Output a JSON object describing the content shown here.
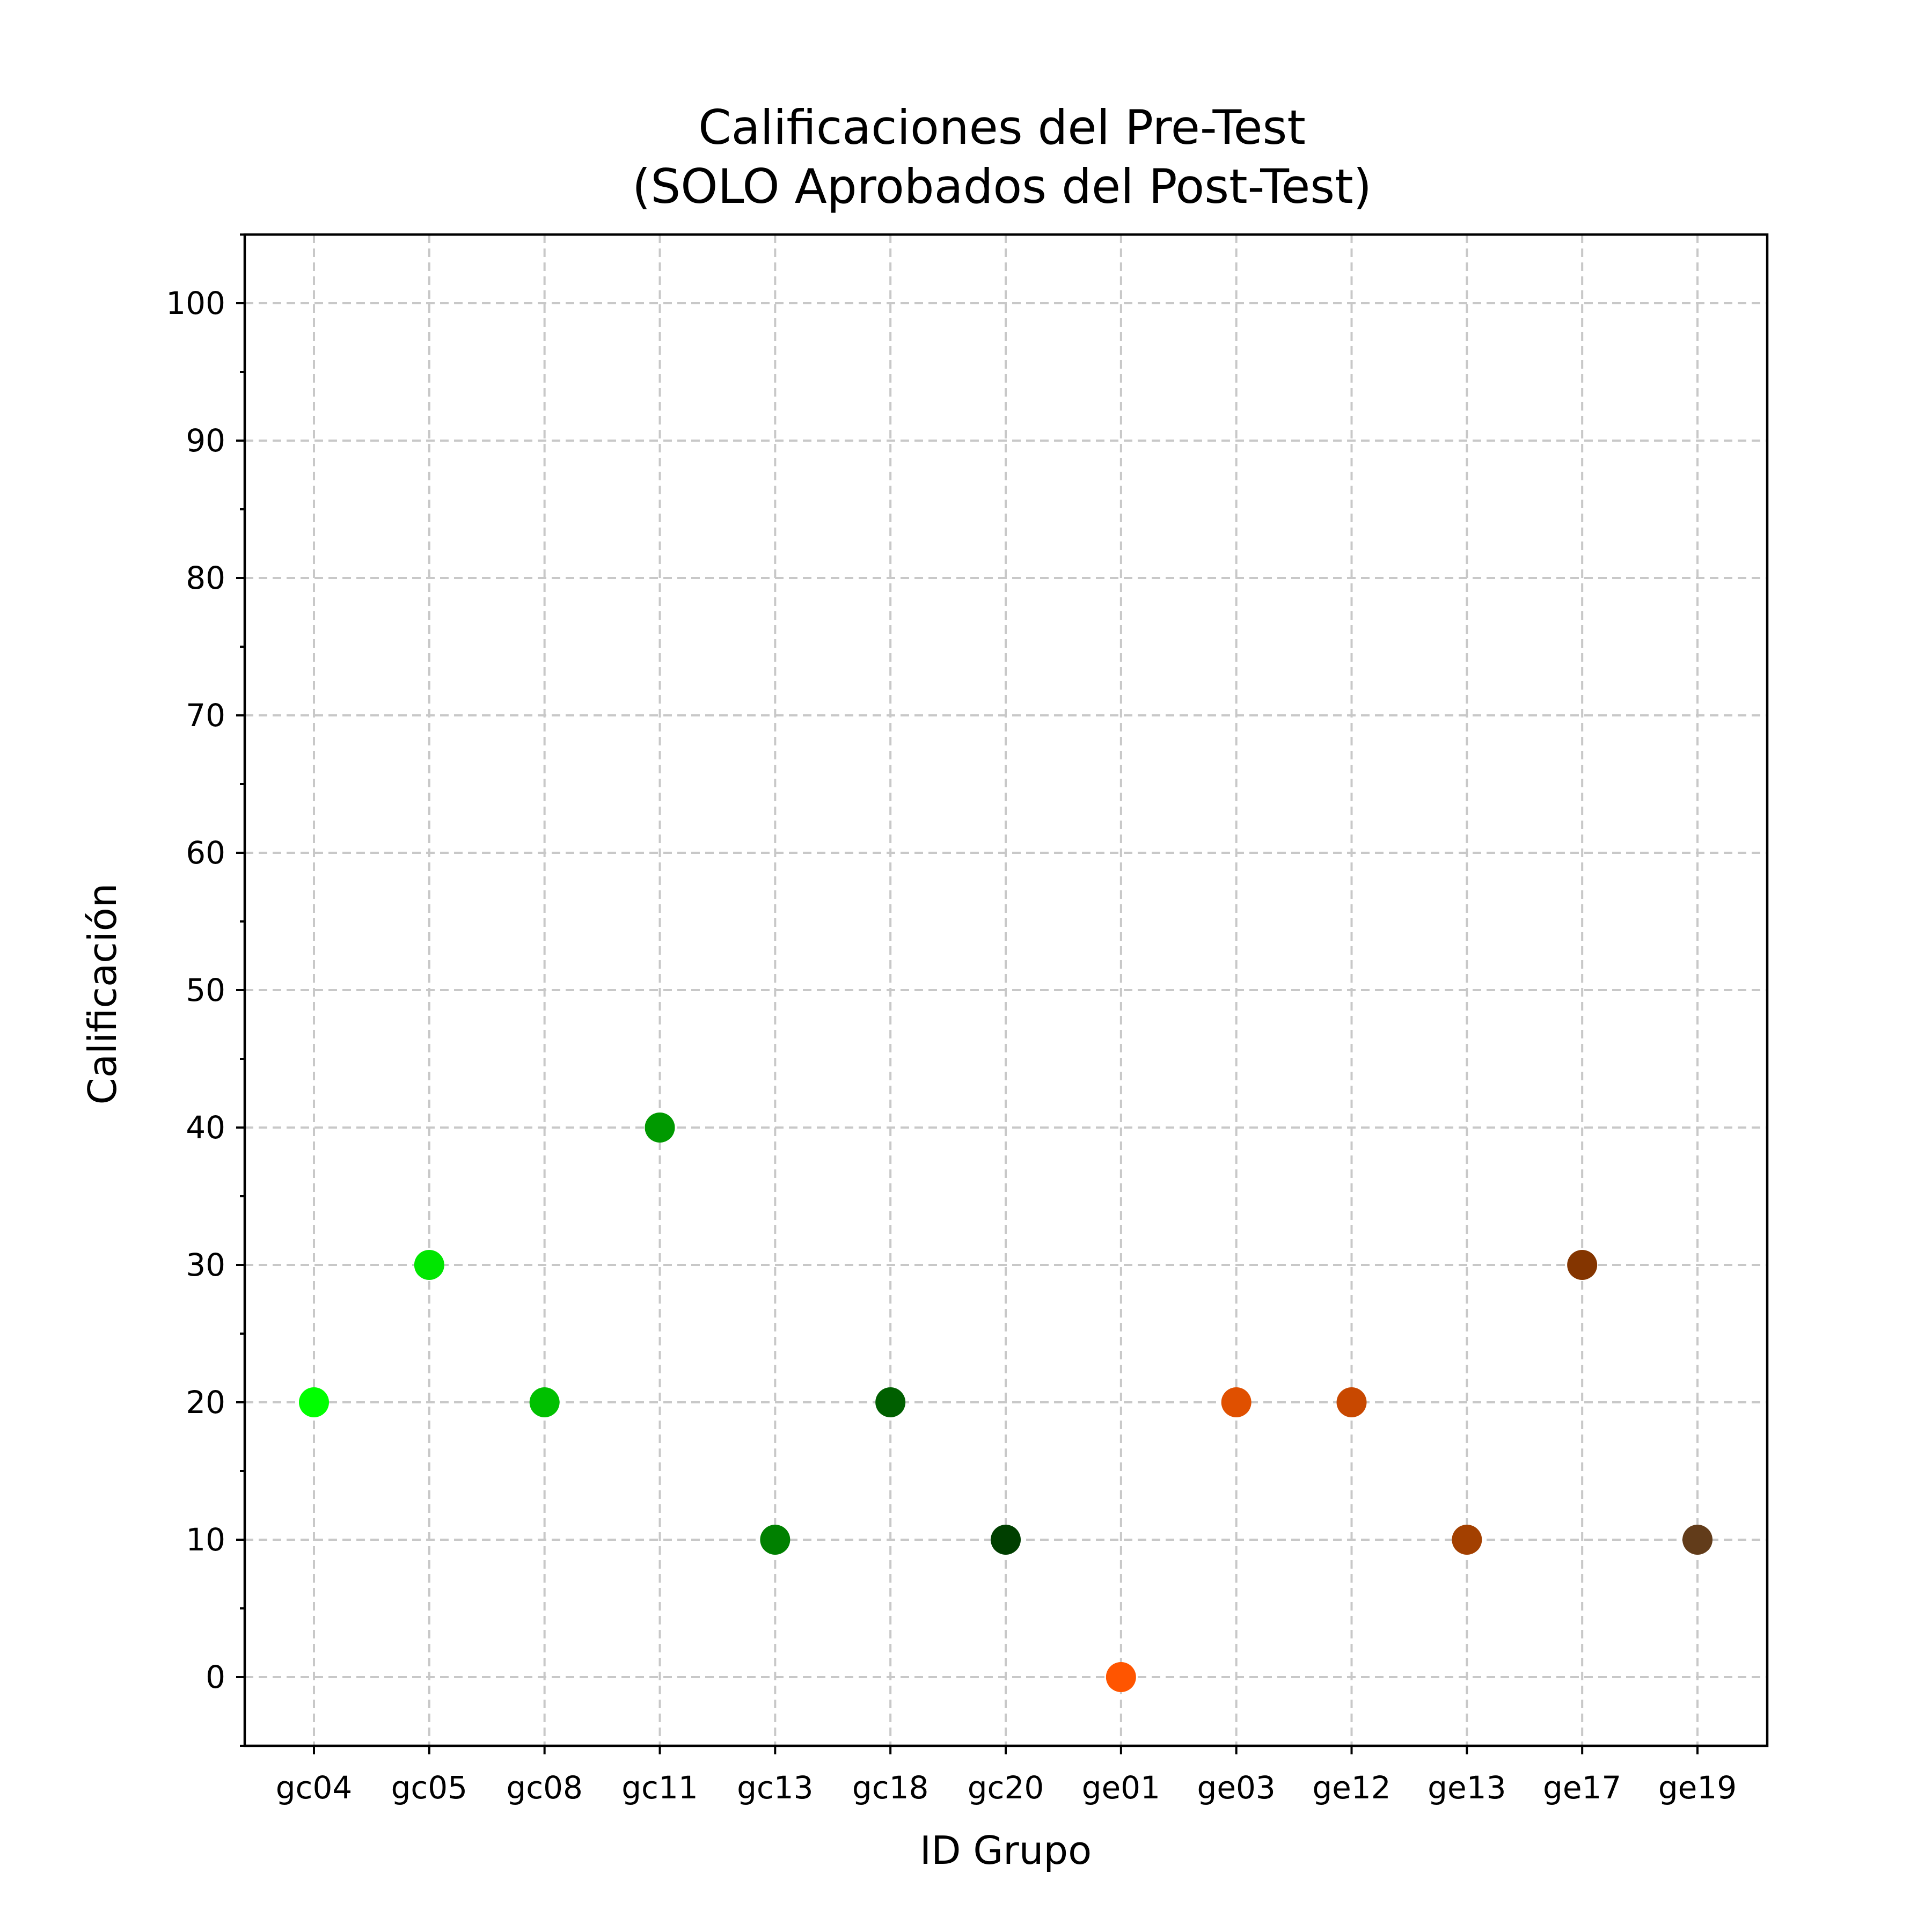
{
  "chart_data": {
    "type": "scatter",
    "title_lines": [
      "Calificaciones del Pre-Test",
      "(SOLO Aprobados del Post-Test)"
    ],
    "xlabel": "ID Grupo",
    "ylabel": "Calificación",
    "categories": [
      "gc04",
      "gc05",
      "gc08",
      "gc11",
      "gc13",
      "gc18",
      "gc20",
      "ge01",
      "ge03",
      "ge12",
      "ge13",
      "ge17",
      "ge19"
    ],
    "values": [
      20,
      30,
      20,
      40,
      10,
      20,
      10,
      0,
      20,
      20,
      10,
      30,
      10
    ],
    "colors": [
      "#00ff00",
      "#00e600",
      "#00c000",
      "#009900",
      "#008000",
      "#005f00",
      "#003f00",
      "#ff5500",
      "#e05000",
      "#c84800",
      "#a34000",
      "#843500",
      "#623c1a"
    ],
    "ylim": [
      -5,
      105
    ],
    "yticks": [
      0,
      10,
      20,
      30,
      40,
      50,
      60,
      70,
      80,
      90,
      100
    ],
    "grid": true,
    "legend": "none"
  }
}
